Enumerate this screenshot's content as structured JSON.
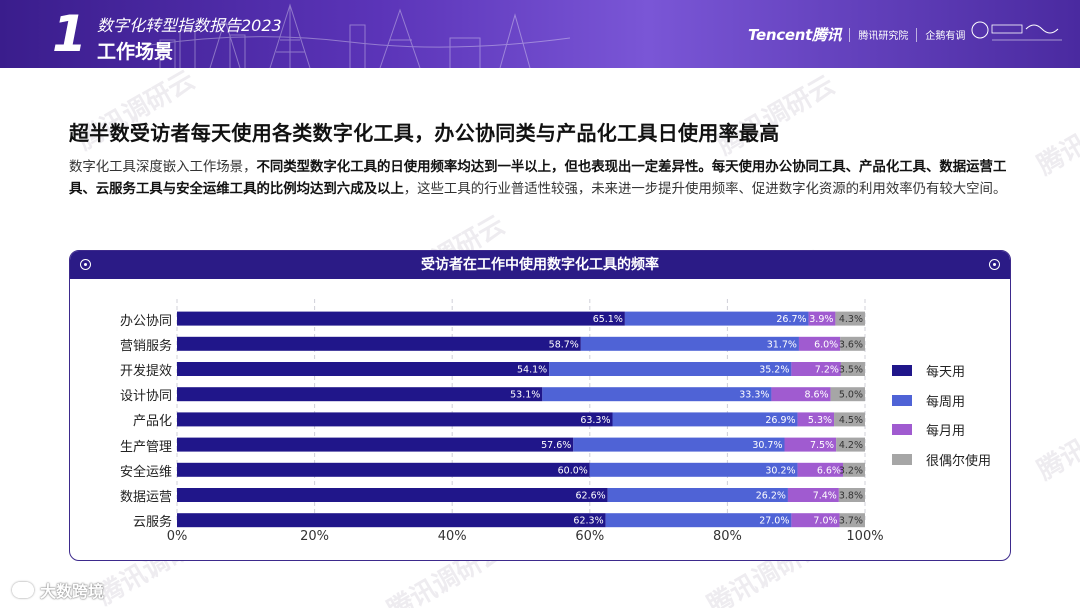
{
  "header": {
    "section_number": "1",
    "report_title": "数字化转型指数报告2023",
    "section_title": "工作场景",
    "logos": [
      "Tencent腾讯",
      "腾讯研究院",
      "企鹅有调"
    ]
  },
  "headline": "超半数受访者每天使用各类数字化工具，办公协同类与产品化工具日使用率最高",
  "paragraph": {
    "p1": "数字化工具深度嵌入工作场景，",
    "p2": "不同类型数字化工具的日使用频率均达到一半以上，但也表现出一定差异性。每天使用办公协同工具、产品化工具、数据运营工具、云服务工具与安全运维工具的比例均达到六成及以上",
    "p3": "，这些工具的行业普适性较强，未来进一步提升使用频率、促进数字化资源的利用效率仍有较大空间。"
  },
  "watermark": "腾讯调研云",
  "footer_brand": "大数跨境",
  "colors": {
    "daily": "#20168a",
    "weekly": "#4f63d6",
    "monthly": "#a05bd0",
    "rare": "#a6a6a6",
    "panel_head": "#2b1b86"
  },
  "chart_data": {
    "type": "bar",
    "orientation": "horizontal",
    "stacked": true,
    "title": "受访者在工作中使用数字化工具的频率",
    "categories": [
      "办公协同",
      "营销服务",
      "开发提效",
      "设计协同",
      "产品化",
      "生产管理",
      "安全运维",
      "数据运营",
      "云服务"
    ],
    "series": [
      {
        "name": "每天用",
        "values": [
          65.1,
          58.7,
          54.1,
          53.1,
          63.3,
          57.6,
          60.0,
          62.6,
          62.3
        ]
      },
      {
        "name": "每周用",
        "values": [
          26.7,
          31.7,
          35.2,
          33.3,
          26.9,
          30.7,
          30.2,
          26.2,
          27.0
        ]
      },
      {
        "name": "每月用",
        "values": [
          3.9,
          6.0,
          7.2,
          8.6,
          5.3,
          7.5,
          6.6,
          7.4,
          7.0
        ]
      },
      {
        "name": "很偶尔使用",
        "values": [
          4.3,
          3.6,
          3.5,
          5.0,
          4.5,
          4.2,
          3.2,
          3.8,
          3.7
        ]
      }
    ],
    "value_format": "%",
    "xlim": [
      0,
      100
    ],
    "xticks": [
      "0%",
      "20%",
      "40%",
      "60%",
      "80%",
      "100%"
    ],
    "grid": "vertical dashed",
    "legend_position": "right"
  }
}
